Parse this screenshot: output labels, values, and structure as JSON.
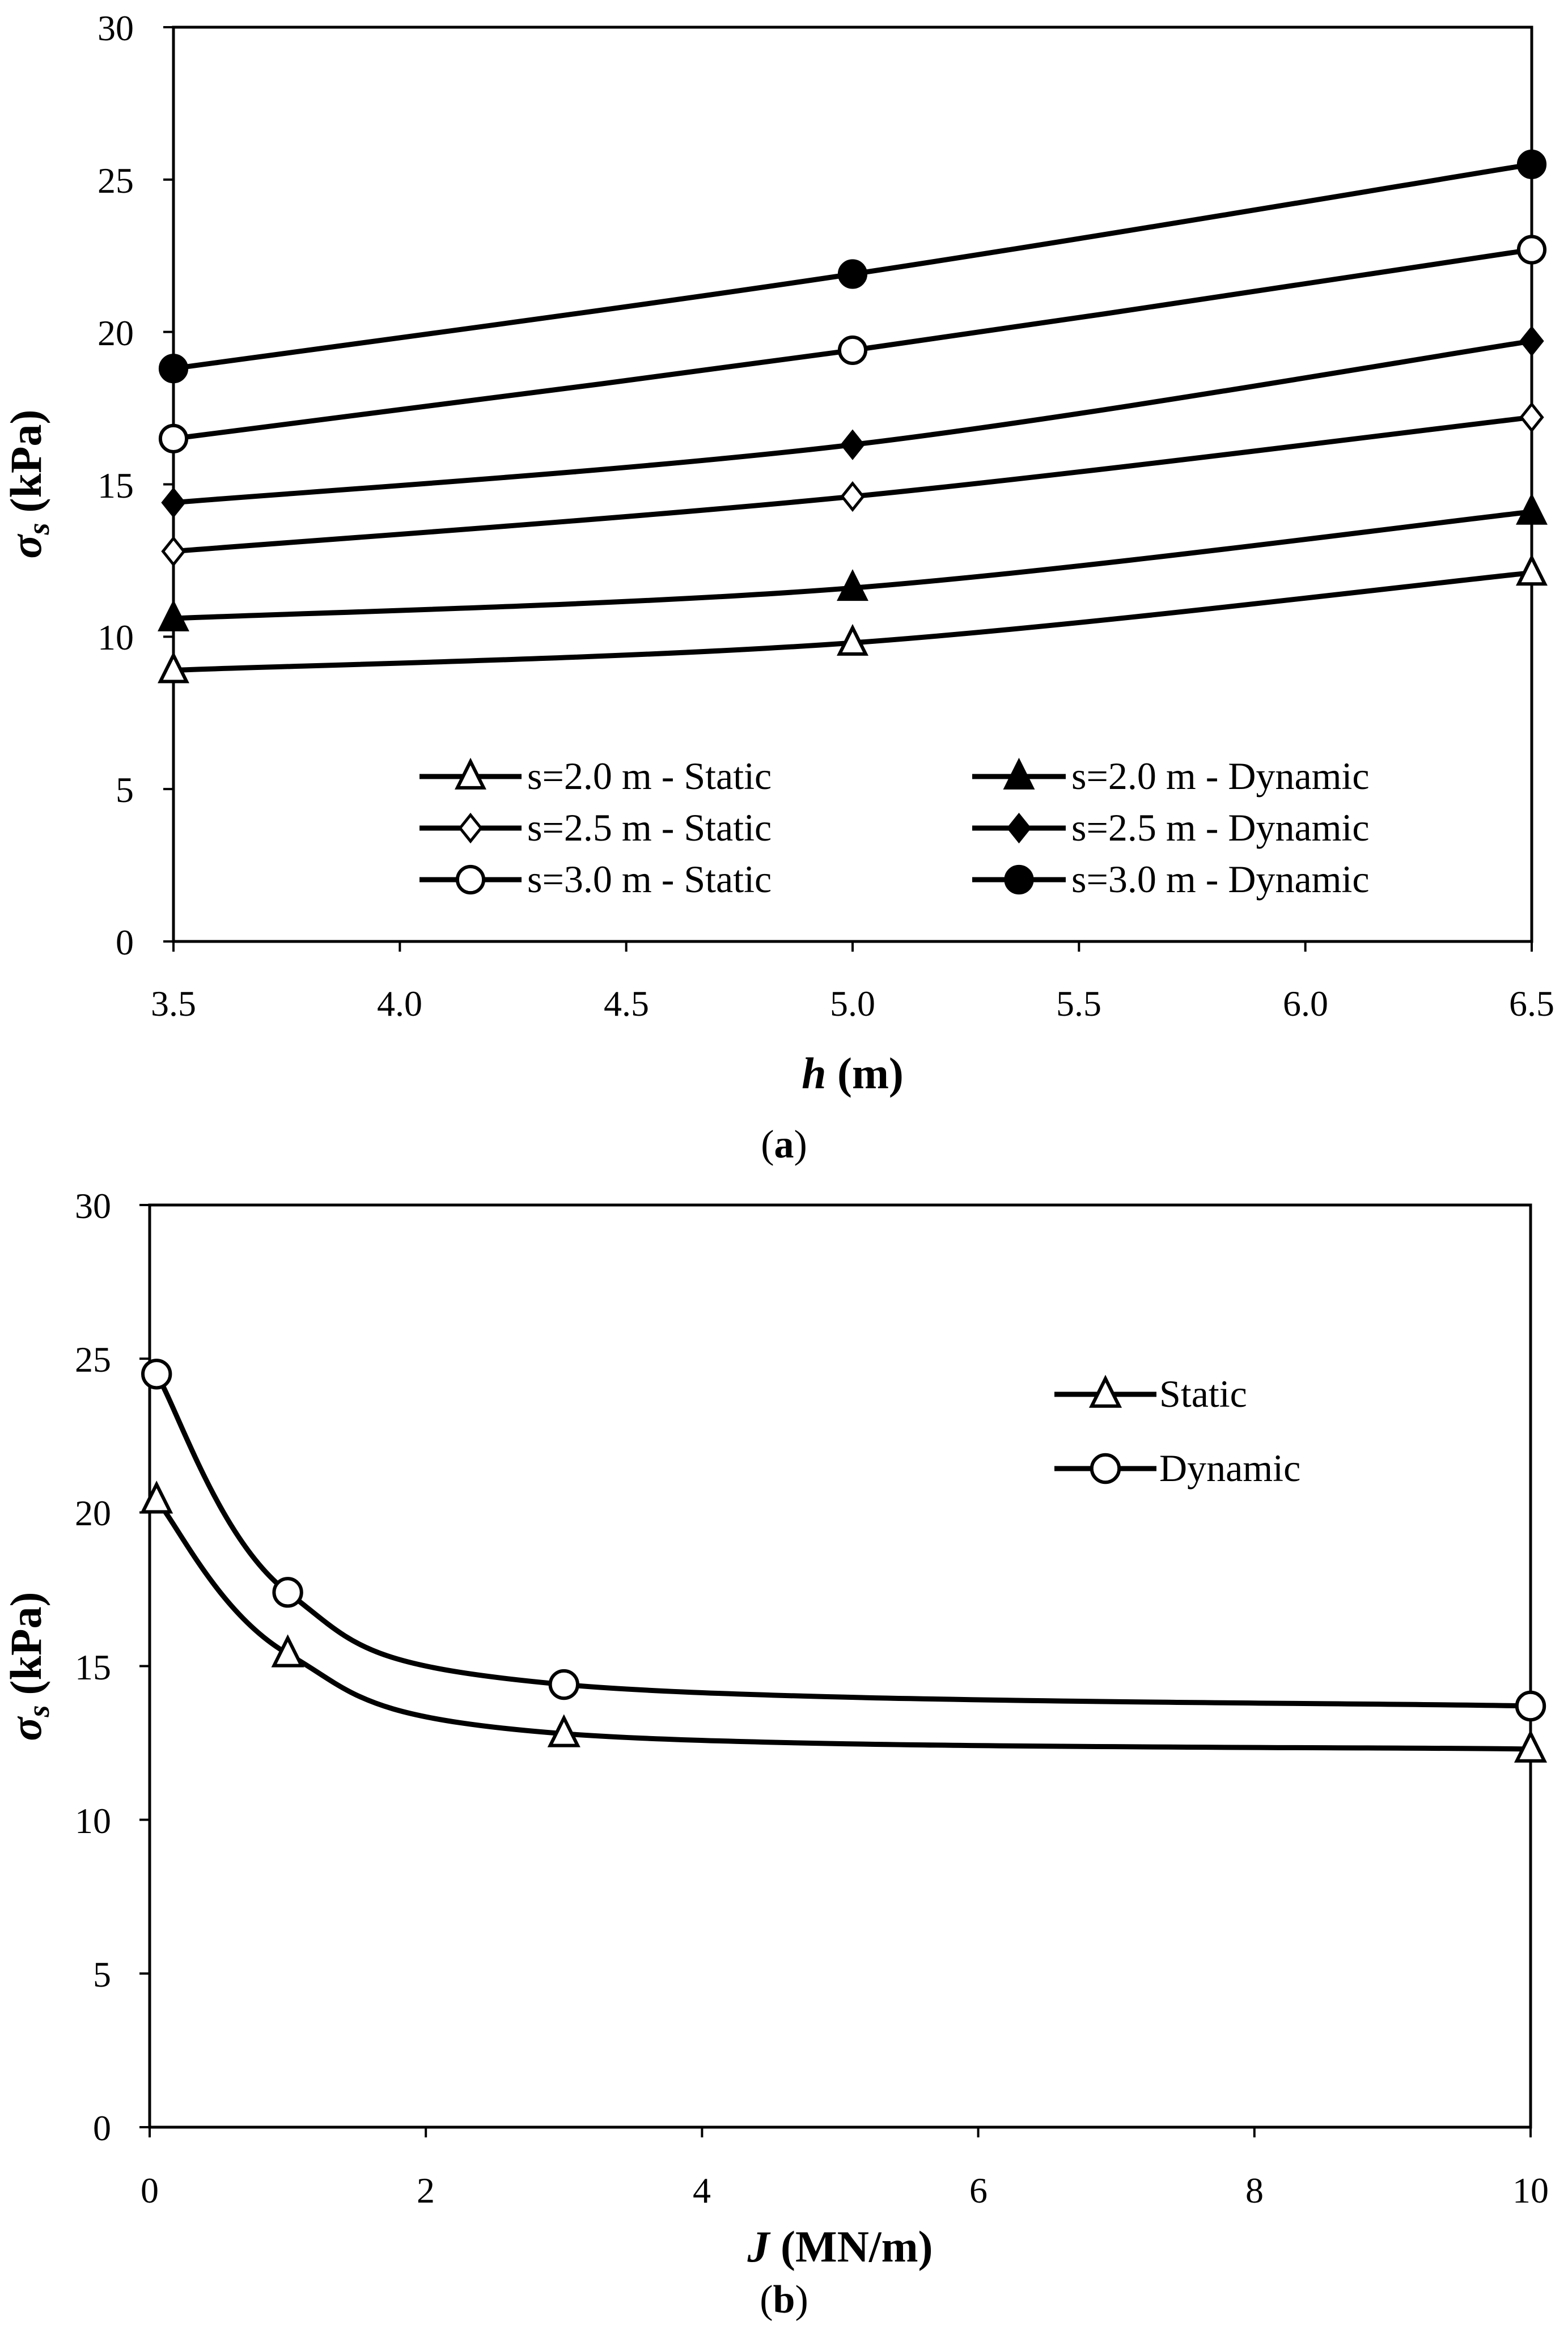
{
  "chart_data": [
    {
      "type": "line",
      "panel": "(a)",
      "caption_letter": "a",
      "xlabel_symbol": "h",
      "xlabel_unit": "(m)",
      "ylabel_symbol": "σ",
      "ylabel_subscript": "s",
      "ylabel_unit": "(kPa)",
      "xlim": [
        3.5,
        6.5
      ],
      "ylim": [
        0,
        30
      ],
      "xticks": [
        "3.5",
        "4.0",
        "4.5",
        "5.0",
        "5.5",
        "6.0",
        "6.5"
      ],
      "yticks": [
        "0",
        "5",
        "10",
        "15",
        "20",
        "25",
        "30"
      ],
      "grid": false,
      "legend_placement": "bottom-center",
      "x": [
        3.5,
        5.0,
        6.5
      ],
      "series": [
        {
          "name": "s=2.0 m - Static",
          "marker": "triangle-open",
          "values": [
            8.9,
            9.8,
            12.1
          ]
        },
        {
          "name": "s=2.0 m - Dynamic",
          "marker": "triangle-filled",
          "values": [
            10.6,
            11.6,
            14.1
          ]
        },
        {
          "name": "s=2.5 m - Static",
          "marker": "diamond-open",
          "values": [
            12.8,
            14.6,
            17.2
          ]
        },
        {
          "name": "s=2.5 m - Dynamic",
          "marker": "diamond-filled",
          "values": [
            14.4,
            16.3,
            19.7
          ]
        },
        {
          "name": "s=3.0 m - Static",
          "marker": "circle-open",
          "values": [
            16.5,
            19.4,
            22.7
          ]
        },
        {
          "name": "s=3.0 m - Dynamic",
          "marker": "circle-filled",
          "values": [
            18.8,
            21.9,
            25.5
          ]
        }
      ]
    },
    {
      "type": "line",
      "panel": "(b)",
      "caption_letter": "b",
      "xlabel_symbol": "J",
      "xlabel_unit": "(MN/m)",
      "ylabel_symbol": "σ",
      "ylabel_subscript": "s",
      "ylabel_unit": "(kPa)",
      "xlim": [
        0,
        10
      ],
      "ylim": [
        0,
        30
      ],
      "xticks": [
        "0",
        "2",
        "4",
        "6",
        "8",
        "10"
      ],
      "yticks": [
        "0",
        "5",
        "10",
        "15",
        "20",
        "25",
        "30"
      ],
      "grid": false,
      "legend_placement": "top-right",
      "x": [
        0.05,
        1,
        3,
        10
      ],
      "series": [
        {
          "name": "Static",
          "marker": "triangle-open",
          "values": [
            20.4,
            15.4,
            12.8,
            12.3
          ]
        },
        {
          "name": "Dynamic",
          "marker": "circle-open",
          "values": [
            24.5,
            17.4,
            14.4,
            13.7
          ]
        }
      ]
    }
  ]
}
